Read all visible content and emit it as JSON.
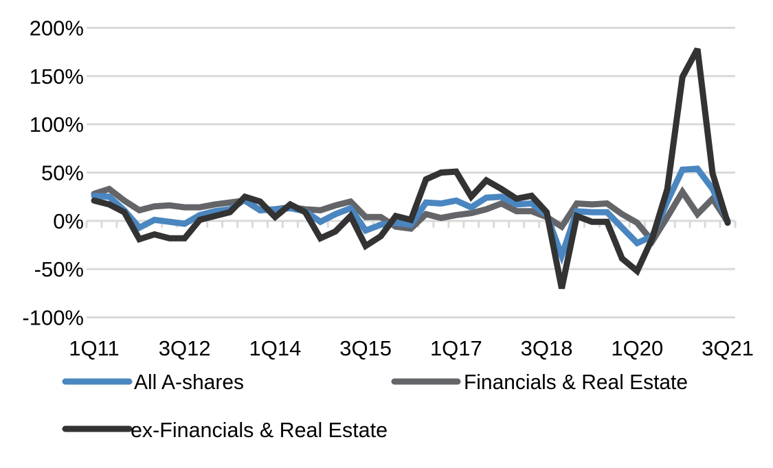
{
  "chart_data": {
    "type": "line",
    "title": "",
    "xlabel": "",
    "ylabel": "",
    "ylim": [
      -100,
      200
    ],
    "yticks": [
      200,
      150,
      100,
      50,
      0,
      -50,
      -100
    ],
    "ytick_labels": [
      "200%",
      "150%",
      "100%",
      "50%",
      "0%",
      "-50%",
      "-100%"
    ],
    "grid": true,
    "legend_position": "bottom",
    "x": [
      "1Q11",
      "2Q11",
      "3Q11",
      "4Q11",
      "1Q12",
      "2Q12",
      "3Q12",
      "4Q12",
      "1Q13",
      "2Q13",
      "3Q13",
      "4Q13",
      "1Q14",
      "2Q14",
      "3Q14",
      "4Q14",
      "1Q15",
      "2Q15",
      "3Q15",
      "4Q15",
      "1Q16",
      "2Q16",
      "3Q16",
      "4Q16",
      "1Q17",
      "2Q17",
      "3Q17",
      "4Q17",
      "1Q18",
      "2Q18",
      "3Q18",
      "4Q18",
      "1Q19",
      "2Q19",
      "3Q19",
      "4Q19",
      "1Q20",
      "2Q20",
      "3Q20",
      "4Q20",
      "1Q21",
      "2Q21",
      "3Q21"
    ],
    "xtick_labels": [
      "1Q11",
      "3Q12",
      "1Q14",
      "3Q15",
      "1Q17",
      "3Q18",
      "1Q20",
      "3Q21"
    ],
    "xtick_every": 6,
    "series": [
      {
        "name": "All A-shares",
        "color": "#4a86c0",
        "values": [
          26,
          25,
          11,
          -7,
          1,
          -1,
          -3,
          6,
          10,
          12,
          22,
          11,
          12,
          13,
          10,
          -1,
          7,
          13,
          -10,
          -4,
          -2,
          -4,
          19,
          18,
          21,
          14,
          24,
          25,
          17,
          18,
          6,
          -36,
          10,
          9,
          9,
          -7,
          -23,
          -16,
          20,
          53,
          54,
          33,
          0
        ]
      },
      {
        "name": "Financials & Real Estate",
        "color": "#646569",
        "values": [
          28,
          33,
          21,
          11,
          15,
          16,
          14,
          14,
          17,
          19,
          21,
          11,
          12,
          14,
          12,
          11,
          16,
          20,
          4,
          4,
          -6,
          -8,
          7,
          3,
          6,
          8,
          12,
          18,
          10,
          10,
          4,
          -6,
          18,
          17,
          18,
          7,
          -2,
          -21,
          4,
          30,
          7,
          23,
          -1
        ]
      },
      {
        "name": "ex-Financials & Real Estate",
        "color": "#333333",
        "values": [
          21,
          17,
          9,
          -19,
          -14,
          -18,
          -18,
          1,
          5,
          9,
          25,
          20,
          4,
          17,
          9,
          -18,
          -11,
          5,
          -26,
          -16,
          5,
          1,
          43,
          50,
          51,
          25,
          42,
          33,
          23,
          26,
          9,
          -70,
          5,
          -1,
          -1,
          -39,
          -52,
          -18,
          33,
          149,
          178,
          49,
          -2
        ]
      }
    ]
  }
}
